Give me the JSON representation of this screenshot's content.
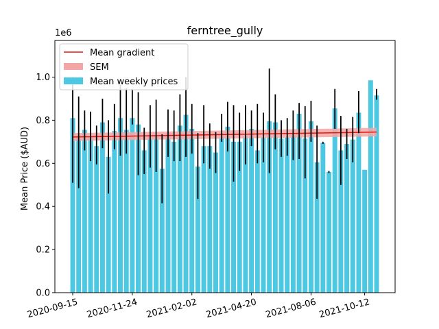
{
  "chart_data": {
    "type": "bar",
    "title": "ferntree_gully",
    "xlabel": "",
    "ylabel": "Mean Price ($AUD)",
    "y_multiplier_label": "1e6",
    "ylim": [
      0.0,
      1.17
    ],
    "yticks": [
      0.0,
      0.2,
      0.4,
      0.6,
      0.8,
      1.0
    ],
    "ytick_labels": [
      "0.0",
      "0.2",
      "0.4",
      "0.6",
      "0.8",
      "1.0"
    ],
    "xtick_labels": [
      "2020-09-15",
      "2020-11-24",
      "2021-02-02",
      "2021-04-20",
      "2021-08-06",
      "2021-10-12"
    ],
    "xtick_indices": [
      0,
      10,
      20,
      30,
      40,
      49
    ],
    "legend_position": "top-left",
    "colors": {
      "bars": "#4dc8e3",
      "errorbars": "#000000",
      "gradient": "#e3170a",
      "sem": "#f4a6a6"
    },
    "legend": [
      {
        "label": "Mean gradient",
        "kind": "line",
        "color": "#e3170a"
      },
      {
        "label": "SEM",
        "kind": "band",
        "color": "#f4a6a6"
      },
      {
        "label": "Mean weekly prices",
        "kind": "bar",
        "color": "#4dc8e3"
      }
    ],
    "series": [
      {
        "name": "Mean weekly prices",
        "values": [
          0.81,
          0.72,
          0.755,
          0.72,
          0.68,
          0.79,
          0.63,
          0.75,
          0.81,
          0.755,
          0.81,
          0.78,
          0.66,
          0.725,
          0.73,
          0.575,
          0.74,
          0.7,
          0.775,
          0.825,
          0.76,
          0.585,
          0.68,
          0.68,
          0.65,
          0.74,
          0.77,
          0.7,
          0.7,
          0.73,
          0.76,
          0.66,
          0.72,
          0.795,
          0.79,
          0.715,
          0.72,
          0.73,
          0.83,
          0.715,
          0.795,
          0.605,
          0.695,
          0.56,
          0.855,
          0.66,
          0.69,
          0.71,
          0.835,
          0.57,
          0.985,
          0.915
        ],
        "err_low": [
          0.51,
          0.485,
          0.66,
          0.61,
          0.595,
          0.67,
          0.46,
          0.665,
          0.635,
          0.645,
          0.78,
          0.545,
          0.55,
          0.58,
          0.56,
          0.415,
          0.63,
          0.61,
          0.61,
          0.63,
          0.645,
          0.435,
          0.6,
          0.575,
          0.555,
          0.7,
          0.655,
          0.515,
          0.565,
          0.595,
          0.68,
          0.6,
          0.605,
          0.555,
          0.665,
          0.63,
          0.635,
          0.615,
          0.62,
          0.53,
          0.7,
          0.435,
          0.69,
          0.555,
          0.76,
          0.5,
          0.62,
          0.605,
          0.74,
          0.57,
          0.985,
          0.895
        ],
        "err_high": [
          1.0,
          0.91,
          0.845,
          0.84,
          0.775,
          0.9,
          0.8,
          0.875,
          0.965,
          0.95,
          0.945,
          0.93,
          0.765,
          0.87,
          0.895,
          0.735,
          0.85,
          0.845,
          0.92,
          1.0,
          0.875,
          0.74,
          0.87,
          0.785,
          0.745,
          0.83,
          0.885,
          0.87,
          0.835,
          0.87,
          0.845,
          0.875,
          0.835,
          1.04,
          0.92,
          0.8,
          0.81,
          0.845,
          0.88,
          0.865,
          0.89,
          0.775,
          0.7,
          0.565,
          0.945,
          0.82,
          0.76,
          0.815,
          0.935,
          0.57,
          0.985,
          0.945
        ]
      },
      {
        "name": "Mean gradient",
        "values_start_end": [
          0.722,
          0.745
        ],
        "sem_start_end": [
          0.018,
          0.02
        ]
      }
    ]
  }
}
